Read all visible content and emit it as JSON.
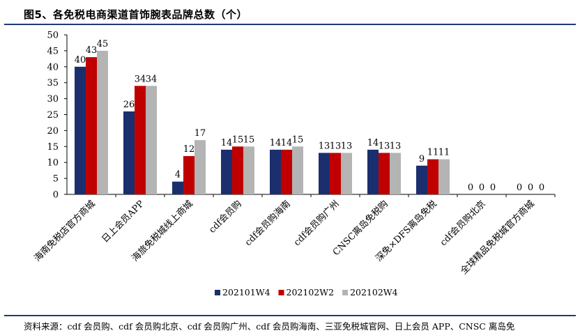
{
  "header": {
    "title": "图5、各免税电商渠道首饰腕表品牌总数（个）"
  },
  "footer": {
    "source": "资料来源：cdf 会员购、cdf 会员购北京、cdf 会员购广州、cdf 会员购海南、三亚免税城官网、日上会员 APP、CNSC 离岛免"
  },
  "chart_data": {
    "type": "bar",
    "title": "图5、各免税电商渠道首饰腕表品牌总数（个）",
    "xlabel": "",
    "ylabel": "",
    "ylim": [
      0,
      50
    ],
    "yticks": [
      0,
      5,
      10,
      15,
      20,
      25,
      30,
      35,
      40,
      45,
      50
    ],
    "grid": false,
    "legend_position": "bottom",
    "categories": [
      "海南免税店官方商城",
      "日上会员APP",
      "海旅免税城线上商城",
      "cdf会员购",
      "cdf会员购海南",
      "cdf会员购广州",
      "CNSC离岛免税购",
      "深免×DFS离岛免税",
      "cdf会员购北京",
      "全球精品免税城官方商城"
    ],
    "series": [
      {
        "name": "202101W4",
        "color": "#1b2f6e",
        "values": [
          40,
          26,
          4,
          14,
          14,
          13,
          14,
          9,
          0,
          0
        ]
      },
      {
        "name": "202102W2",
        "color": "#c00000",
        "values": [
          43,
          34,
          12,
          15,
          14,
          13,
          13,
          11,
          0,
          0
        ]
      },
      {
        "name": "202102W4",
        "color": "#b4b4b4",
        "values": [
          45,
          34,
          17,
          15,
          15,
          13,
          13,
          11,
          0,
          0
        ]
      }
    ]
  }
}
